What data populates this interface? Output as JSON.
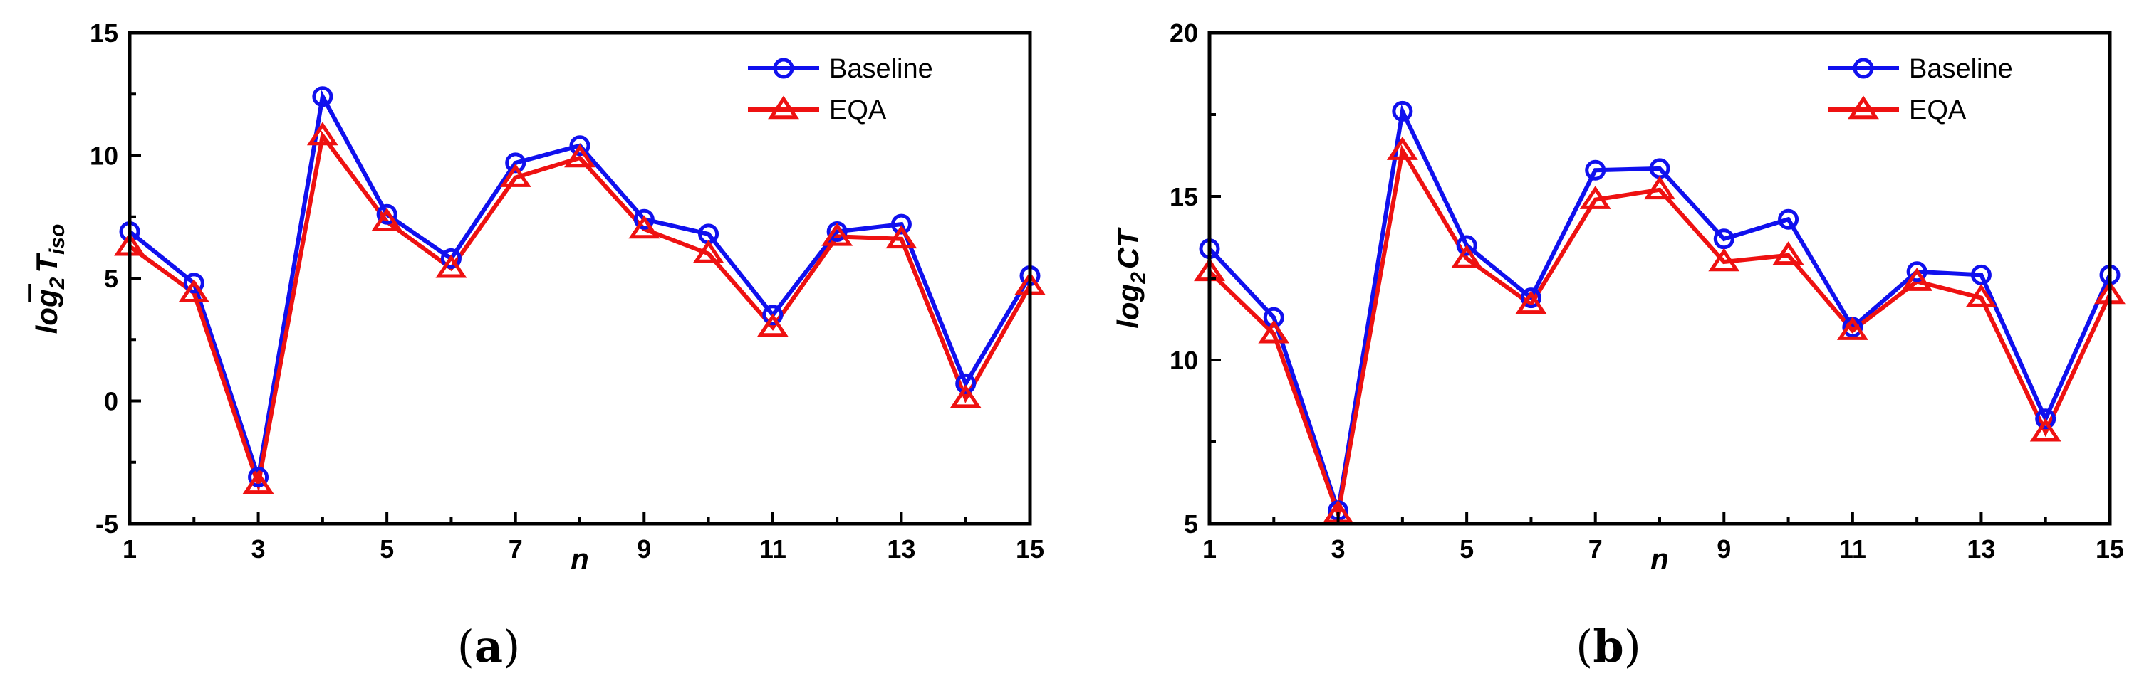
{
  "colors": {
    "baseline": "#1010ee",
    "eqa": "#ee1111"
  },
  "chart_data": [
    {
      "type": "line",
      "caption": {
        "open": "(",
        "letter": "a",
        "close": ")"
      },
      "xlabel": "n",
      "ylabel": {
        "base": "log",
        "sub": "2",
        "symbol": "T",
        "symbol_sub": "iso"
      },
      "xlim": [
        1,
        15
      ],
      "ylim": [
        -5,
        15
      ],
      "xticks": [
        "1",
        "3",
        "5",
        "7",
        "9",
        "11",
        "13",
        "15"
      ],
      "yticks": [
        "-5",
        "0",
        "5",
        "10",
        "15"
      ],
      "legend": "top-right",
      "series": [
        {
          "name": "Baseline",
          "marker": "circle",
          "color": "#1010ee",
          "x": [
            1,
            2,
            3,
            4,
            5,
            6,
            7,
            8,
            9,
            10,
            11,
            12,
            13,
            14,
            15
          ],
          "values": [
            6.9,
            4.8,
            -3.1,
            12.4,
            7.6,
            5.8,
            9.7,
            10.4,
            7.4,
            6.8,
            3.5,
            6.9,
            7.2,
            0.7,
            5.1
          ]
        },
        {
          "name": "EQA",
          "marker": "triangle",
          "color": "#ee1111",
          "x": [
            1,
            2,
            3,
            4,
            5,
            6,
            7,
            8,
            9,
            10,
            11,
            12,
            13,
            14,
            15
          ],
          "values": [
            6.3,
            4.4,
            -3.4,
            10.8,
            7.3,
            5.4,
            9.1,
            9.9,
            7.0,
            6.0,
            3.0,
            6.7,
            6.6,
            0.1,
            4.7
          ]
        }
      ]
    },
    {
      "type": "line",
      "caption": {
        "open": "(",
        "letter": "b",
        "close": ")"
      },
      "xlabel": "n",
      "ylabel": {
        "base": "log",
        "sub": "2",
        "symbol": "CT"
      },
      "xlim": [
        1,
        15
      ],
      "ylim": [
        5,
        20
      ],
      "xticks": [
        "1",
        "3",
        "5",
        "7",
        "9",
        "11",
        "13",
        "15"
      ],
      "yticks": [
        "5",
        "10",
        "15",
        "20"
      ],
      "legend": "top-right",
      "series": [
        {
          "name": "Baseline",
          "marker": "circle",
          "color": "#1010ee",
          "x": [
            1,
            2,
            3,
            4,
            5,
            6,
            7,
            8,
            9,
            10,
            11,
            12,
            13,
            14,
            15
          ],
          "values": [
            13.4,
            11.3,
            5.4,
            17.6,
            13.5,
            11.9,
            15.8,
            15.85,
            13.7,
            14.3,
            11.0,
            12.7,
            12.6,
            8.2,
            12.6
          ]
        },
        {
          "name": "EQA",
          "marker": "triangle",
          "color": "#ee1111",
          "x": [
            1,
            2,
            3,
            4,
            5,
            6,
            7,
            8,
            9,
            10,
            11,
            12,
            13,
            14,
            15
          ],
          "values": [
            12.7,
            10.8,
            5.3,
            16.4,
            13.1,
            11.7,
            14.9,
            15.2,
            13.0,
            13.2,
            10.9,
            12.4,
            11.9,
            7.8,
            12.0
          ]
        }
      ]
    }
  ]
}
